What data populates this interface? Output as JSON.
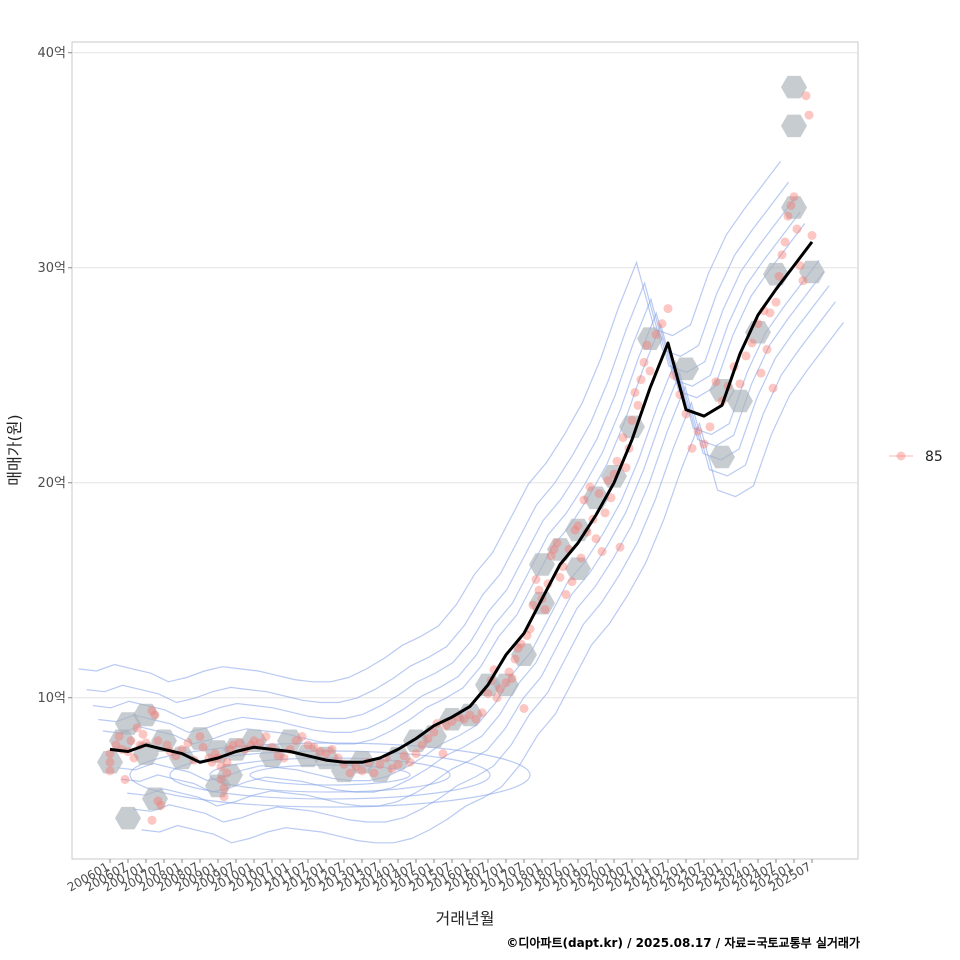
{
  "chart_data": {
    "type": "scatter",
    "title": "",
    "xlabel": "거래년월",
    "ylabel": "매매가(원)",
    "ylim": [
      2.5,
      40.5
    ],
    "y_ticks": [
      {
        "value": 10,
        "label": "10억"
      },
      {
        "value": 20,
        "label": "20억"
      },
      {
        "value": 30,
        "label": "30억"
      },
      {
        "value": 40,
        "label": "40억"
      }
    ],
    "x_ticks": [
      "200601",
      "200607",
      "200701",
      "200707",
      "200801",
      "200807",
      "200901",
      "200907",
      "201001",
      "201007",
      "201101",
      "201107",
      "201201",
      "201207",
      "201301",
      "201307",
      "201401",
      "201407",
      "201501",
      "201507",
      "201601",
      "201607",
      "201701",
      "201707",
      "201801",
      "201807",
      "201901",
      "201907",
      "202001",
      "202007",
      "202101",
      "202107",
      "202201",
      "202207",
      "202301",
      "202307",
      "202401",
      "202407",
      "202501",
      "202507"
    ],
    "grid": true,
    "legend": {
      "position": "right",
      "entries": [
        {
          "label": "85",
          "color": "#f8766d"
        }
      ]
    },
    "colors": {
      "points": "#f8766d",
      "hex": "#a9b0b8",
      "density": "#7f9ee8",
      "trend": "#000000"
    },
    "series": [
      {
        "name": "85",
        "kind": "points",
        "points": [
          [
            "200601",
            7.0
          ],
          [
            "200601",
            6.6
          ],
          [
            "200601",
            7.4
          ],
          [
            "200603",
            7.8
          ],
          [
            "200604",
            8.2
          ],
          [
            "200605",
            7.6
          ],
          [
            "200606",
            6.2
          ],
          [
            "200607",
            7.5
          ],
          [
            "200608",
            8.0
          ],
          [
            "200609",
            7.2
          ],
          [
            "200610",
            8.6
          ],
          [
            "200611",
            7.8
          ],
          [
            "200612",
            8.3
          ],
          [
            "200701",
            7.9
          ],
          [
            "200703",
            9.4
          ],
          [
            "200704",
            9.2
          ],
          [
            "200705",
            5.2
          ],
          [
            "200706",
            5.0
          ],
          [
            "200703",
            4.3
          ],
          [
            "200705",
            8.0
          ],
          [
            "200708",
            7.8
          ],
          [
            "200709",
            7.5
          ],
          [
            "200711",
            7.3
          ],
          [
            "200801",
            7.6
          ],
          [
            "200803",
            7.9
          ],
          [
            "200805",
            7.1
          ],
          [
            "200807",
            8.2
          ],
          [
            "200808",
            7.7
          ],
          [
            "200810",
            7.2
          ],
          [
            "200811",
            7.0
          ],
          [
            "200812",
            7.4
          ],
          [
            "200901",
            7.2
          ],
          [
            "200902",
            6.8
          ],
          [
            "200902",
            6.2
          ],
          [
            "200903",
            5.8
          ],
          [
            "200903",
            5.4
          ],
          [
            "200904",
            6.5
          ],
          [
            "200904",
            7.0
          ],
          [
            "200905",
            7.6
          ],
          [
            "200906",
            7.8
          ],
          [
            "200908",
            7.9
          ],
          [
            "200910",
            7.6
          ],
          [
            "200912",
            7.8
          ],
          [
            "201001",
            8.0
          ],
          [
            "201003",
            7.9
          ],
          [
            "201005",
            8.2
          ],
          [
            "201007",
            7.7
          ],
          [
            "201009",
            7.3
          ],
          [
            "201011",
            7.2
          ],
          [
            "201101",
            7.6
          ],
          [
            "201103",
            8.0
          ],
          [
            "201105",
            8.2
          ],
          [
            "201107",
            7.8
          ],
          [
            "201109",
            7.7
          ],
          [
            "201111",
            7.5
          ],
          [
            "201201",
            7.4
          ],
          [
            "201203",
            7.6
          ],
          [
            "201205",
            7.2
          ],
          [
            "201207",
            6.9
          ],
          [
            "201209",
            6.5
          ],
          [
            "201211",
            6.8
          ],
          [
            "201301",
            6.6
          ],
          [
            "201303",
            7.0
          ],
          [
            "201305",
            6.5
          ],
          [
            "201307",
            6.9
          ],
          [
            "201309",
            7.2
          ],
          [
            "201311",
            6.7
          ],
          [
            "201401",
            6.9
          ],
          [
            "201403",
            7.3
          ],
          [
            "201405",
            7.0
          ],
          [
            "201407",
            7.4
          ],
          [
            "201409",
            7.8
          ],
          [
            "201411",
            8.1
          ],
          [
            "201501",
            8.4
          ],
          [
            "201502",
            8.8
          ],
          [
            "201504",
            7.4
          ],
          [
            "201505",
            8.7
          ],
          [
            "201507",
            8.9
          ],
          [
            "201509",
            9.1
          ],
          [
            "201511",
            9.0
          ],
          [
            "201601",
            9.2
          ],
          [
            "201603",
            9.0
          ],
          [
            "201605",
            9.3
          ],
          [
            "201607",
            10.2
          ],
          [
            "201608",
            10.8
          ],
          [
            "201609",
            11.3
          ],
          [
            "201610",
            10.0
          ],
          [
            "201611",
            10.4
          ],
          [
            "201701",
            10.7
          ],
          [
            "201702",
            11.2
          ],
          [
            "201703",
            10.9
          ],
          [
            "201704",
            11.8
          ],
          [
            "201705",
            12.3
          ],
          [
            "201706",
            12.5
          ],
          [
            "201707",
            9.5
          ],
          [
            "201708",
            12.9
          ],
          [
            "201709",
            13.2
          ],
          [
            "201710",
            14.3
          ],
          [
            "201711",
            15.5
          ],
          [
            "201712",
            15.0
          ],
          [
            "201801",
            14.6
          ],
          [
            "201802",
            14.1
          ],
          [
            "201803",
            15.3
          ],
          [
            "201804",
            16.6
          ],
          [
            "201805",
            16.9
          ],
          [
            "201806",
            17.2
          ],
          [
            "201807",
            15.6
          ],
          [
            "201808",
            16.1
          ],
          [
            "201809",
            14.8
          ],
          [
            "201810",
            16.9
          ],
          [
            "201811",
            15.4
          ],
          [
            "201812",
            17.8
          ],
          [
            "201901",
            18.0
          ],
          [
            "201902",
            16.5
          ],
          [
            "201903",
            19.2
          ],
          [
            "201904",
            17.7
          ],
          [
            "201905",
            19.8
          ],
          [
            "201906",
            18.3
          ],
          [
            "201907",
            17.4
          ],
          [
            "201908",
            19.5
          ],
          [
            "201909",
            16.8
          ],
          [
            "201910",
            18.6
          ],
          [
            "201911",
            20.1
          ],
          [
            "201912",
            19.3
          ],
          [
            "202001",
            20.4
          ],
          [
            "202002",
            21.0
          ],
          [
            "202003",
            17.0
          ],
          [
            "202004",
            22.1
          ],
          [
            "202005",
            20.7
          ],
          [
            "202006",
            21.6
          ],
          [
            "202007",
            22.9
          ],
          [
            "202008",
            24.2
          ],
          [
            "202009",
            23.6
          ],
          [
            "202010",
            24.8
          ],
          [
            "202011",
            25.6
          ],
          [
            "202012",
            26.4
          ],
          [
            "202101",
            25.2
          ],
          [
            "202103",
            26.9
          ],
          [
            "202105",
            27.4
          ],
          [
            "202107",
            28.1
          ],
          [
            "202109",
            25.0
          ],
          [
            "202111",
            24.1
          ],
          [
            "202201",
            23.2
          ],
          [
            "202203",
            21.6
          ],
          [
            "202205",
            22.4
          ],
          [
            "202207",
            21.8
          ],
          [
            "202209",
            22.6
          ],
          [
            "202211",
            24.7
          ],
          [
            "202301",
            23.8
          ],
          [
            "202303",
            24.5
          ],
          [
            "202305",
            25.4
          ],
          [
            "202307",
            24.6
          ],
          [
            "202309",
            25.9
          ],
          [
            "202311",
            26.5
          ],
          [
            "202401",
            27.4
          ],
          [
            "202402",
            25.1
          ],
          [
            "202403",
            28.0
          ],
          [
            "202404",
            26.2
          ],
          [
            "202405",
            27.9
          ],
          [
            "202406",
            24.4
          ],
          [
            "202407",
            28.4
          ],
          [
            "202408",
            29.6
          ],
          [
            "202409",
            30.6
          ],
          [
            "202410",
            31.2
          ],
          [
            "202411",
            32.4
          ],
          [
            "202412",
            32.9
          ],
          [
            "202501",
            33.3
          ],
          [
            "202502",
            31.8
          ],
          [
            "202503",
            30.1
          ],
          [
            "202504",
            29.4
          ],
          [
            "202505",
            38.0
          ],
          [
            "202506",
            37.1
          ],
          [
            "202507",
            31.5
          ]
        ]
      },
      {
        "name": "",
        "kind": "hexbin",
        "points": [
          [
            "200601",
            7.0
          ],
          [
            "200605",
            8.0
          ],
          [
            "200607",
            8.8
          ],
          [
            "200701",
            7.4
          ],
          [
            "200701",
            9.2
          ],
          [
            "200704",
            5.3
          ],
          [
            "200607",
            4.4
          ],
          [
            "200707",
            8.0
          ],
          [
            "200801",
            7.2
          ],
          [
            "200807",
            8.1
          ],
          [
            "200901",
            5.9
          ],
          [
            "200901",
            7.5
          ],
          [
            "200905",
            6.4
          ],
          [
            "200907",
            7.6
          ],
          [
            "201001",
            8.0
          ],
          [
            "201007",
            7.3
          ],
          [
            "201101",
            8.0
          ],
          [
            "201107",
            7.3
          ],
          [
            "201201",
            7.2
          ],
          [
            "201207",
            6.6
          ],
          [
            "201301",
            7.0
          ],
          [
            "201307",
            6.6
          ],
          [
            "201401",
            7.2
          ],
          [
            "201407",
            8.0
          ],
          [
            "201501",
            8.2
          ],
          [
            "201507",
            9.0
          ],
          [
            "201601",
            9.2
          ],
          [
            "201607",
            10.6
          ],
          [
            "201701",
            10.6
          ],
          [
            "201707",
            12.0
          ],
          [
            "201801",
            14.4
          ],
          [
            "201801",
            16.2
          ],
          [
            "201807",
            16.9
          ],
          [
            "201901",
            17.8
          ],
          [
            "201901",
            16.0
          ],
          [
            "201907",
            19.3
          ],
          [
            "202001",
            20.3
          ],
          [
            "202007",
            22.6
          ],
          [
            "202101",
            26.7
          ],
          [
            "202201",
            25.3
          ],
          [
            "202301",
            24.3
          ],
          [
            "202301",
            21.2
          ],
          [
            "202307",
            23.8
          ],
          [
            "202401",
            27.0
          ],
          [
            "202407",
            29.7
          ],
          [
            "202501",
            32.8
          ],
          [
            "202507",
            29.8
          ],
          [
            "202501",
            36.6
          ],
          [
            "202501",
            38.4
          ]
        ]
      },
      {
        "name": "",
        "kind": "trend_line",
        "points": [
          [
            "200601",
            7.6
          ],
          [
            "200607",
            7.5
          ],
          [
            "200701",
            7.8
          ],
          [
            "200707",
            7.6
          ],
          [
            "200801",
            7.4
          ],
          [
            "200807",
            7.0
          ],
          [
            "200901",
            7.2
          ],
          [
            "200907",
            7.5
          ],
          [
            "201001",
            7.7
          ],
          [
            "201007",
            7.6
          ],
          [
            "201101",
            7.5
          ],
          [
            "201107",
            7.3
          ],
          [
            "201201",
            7.1
          ],
          [
            "201207",
            7.0
          ],
          [
            "201301",
            7.0
          ],
          [
            "201307",
            7.2
          ],
          [
            "201401",
            7.6
          ],
          [
            "201407",
            8.1
          ],
          [
            "201501",
            8.7
          ],
          [
            "201507",
            9.1
          ],
          [
            "201601",
            9.6
          ],
          [
            "201607",
            10.6
          ],
          [
            "201701",
            12.0
          ],
          [
            "201707",
            13.0
          ],
          [
            "201801",
            14.6
          ],
          [
            "201807",
            16.2
          ],
          [
            "201901",
            17.2
          ],
          [
            "201907",
            18.5
          ],
          [
            "202001",
            20.0
          ],
          [
            "202007",
            22.0
          ],
          [
            "202101",
            24.4
          ],
          [
            "202107",
            26.5
          ],
          [
            "202201",
            23.4
          ],
          [
            "202207",
            23.1
          ],
          [
            "202301",
            23.6
          ],
          [
            "202307",
            26.0
          ],
          [
            "202401",
            27.8
          ],
          [
            "202407",
            29.0
          ],
          [
            "202501",
            30.1
          ],
          [
            "202507",
            31.2
          ]
        ]
      }
    ]
  },
  "caption": "©디아파트(dapt.kr) / 2025.08.17 / 자료=국토교통부 실거래가"
}
